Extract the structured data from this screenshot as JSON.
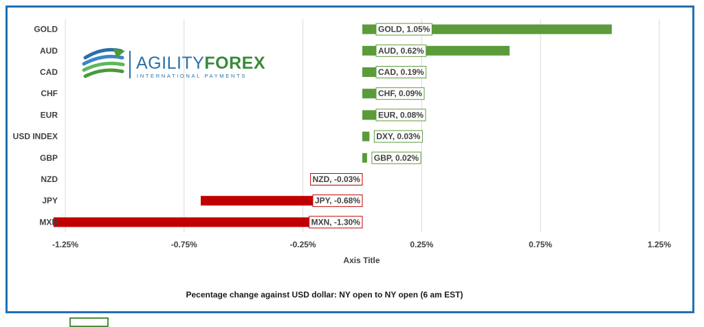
{
  "chart_data": {
    "type": "bar",
    "orientation": "horizontal",
    "categories": [
      "GOLD",
      "AUD",
      "CAD",
      "CHF",
      "EUR",
      "USD INDEX",
      "GBP",
      "NZD",
      "JPY",
      "MXN"
    ],
    "values": [
      1.05,
      0.62,
      0.19,
      0.09,
      0.08,
      0.03,
      0.02,
      -0.03,
      -0.68,
      -1.3
    ],
    "data_labels": [
      "GOLD, 1.05%",
      "AUD, 0.62%",
      "CAD, 0.19%",
      "CHF, 0.09%",
      "EUR, 0.08%",
      "DXY, 0.03%",
      "GBP, 0.02%",
      "NZD, -0.03%",
      "JPY, -0.68%",
      "MXN, -1.30%"
    ],
    "xlabel": "Axis Title",
    "ylabel": "",
    "xlim": [
      -1.25,
      1.25
    ],
    "xticks": [
      -1.25,
      -0.75,
      -0.25,
      0.25,
      0.75,
      1.25
    ],
    "xtick_labels": [
      "-1.25%",
      "-0.75%",
      "-0.25%",
      "0.25%",
      "0.75%",
      "1.25%"
    ],
    "grid": "vertical",
    "caption": "Pecentage change against USD dollar:  NY open to NY open  (6 am EST)",
    "colors": {
      "positive": "#5b9b3a",
      "negative": "#c00000",
      "frame": "#1f6fb5"
    }
  },
  "logo": {
    "brand_first": "AGILITY",
    "brand_second": "FOREX",
    "tagline": "INTERNATIONAL PAYMENTS"
  }
}
